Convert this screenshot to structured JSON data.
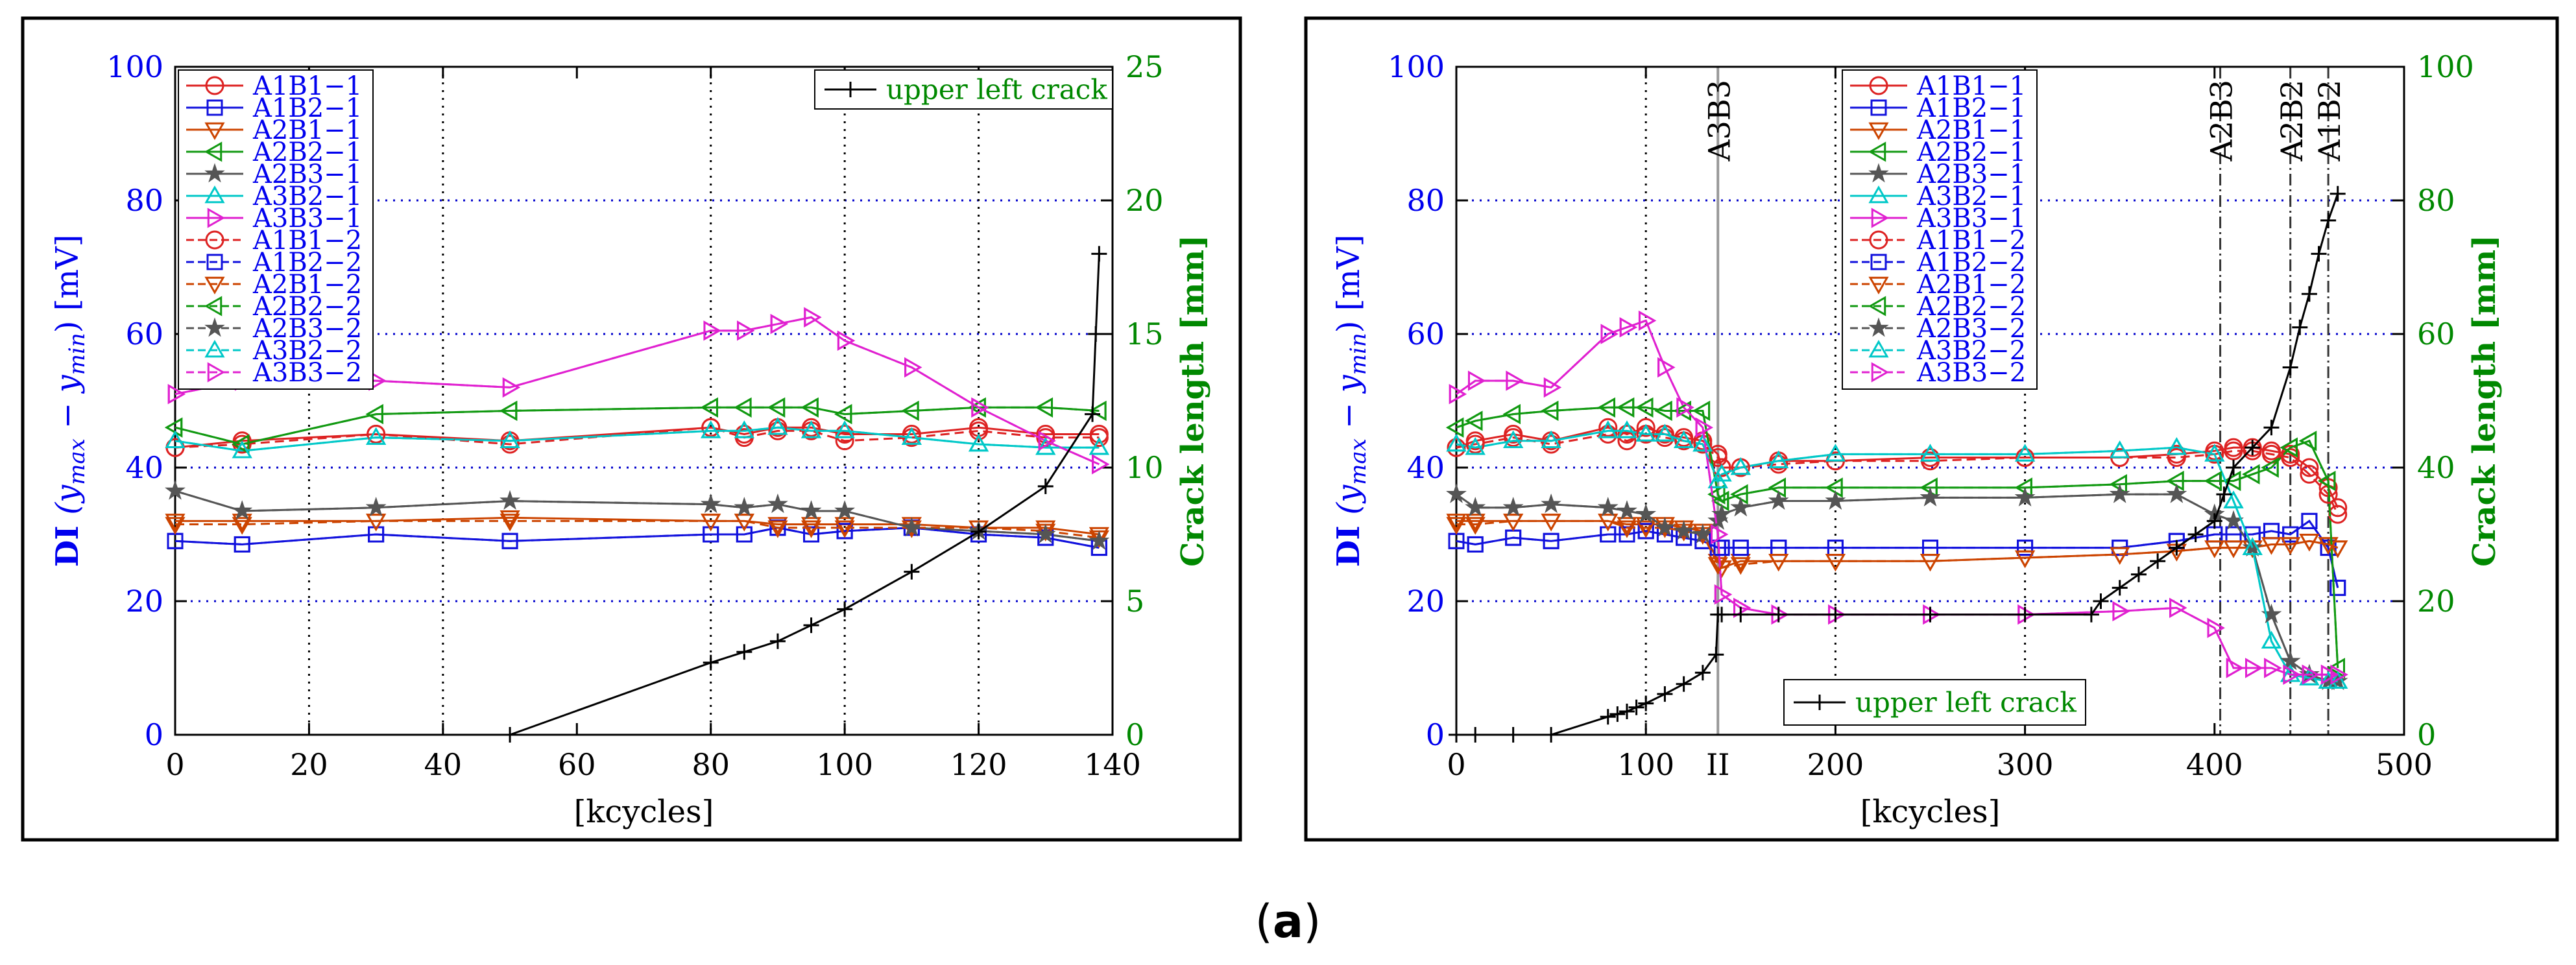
{
  "caption": {
    "open": "(",
    "letter": "a",
    "close": ")"
  },
  "colors": {
    "A1B1": "#dd2222",
    "A1B2": "#1111dd",
    "A2B1": "#cc4400",
    "A2B2": "#119911",
    "A2B3": "#555555",
    "A3B2": "#00c8c8",
    "A3B3": "#e020d0",
    "crack": "#000000",
    "axis_left": "#0000ee",
    "axis_right": "#008800",
    "grid": "#0000cc"
  },
  "chart_data": [
    {
      "type": "line",
      "title": "",
      "xlabel": "[kcycles]",
      "ylabel_left": {
        "bold": "DI",
        "formula": "(y",
        "sub1": "max",
        "minus": " − y",
        "sub2": "min",
        "tail": ") [mV]"
      },
      "ylabel_right": "Crack length [mm]",
      "xlim": [
        0,
        140
      ],
      "ylim_left": [
        0,
        100
      ],
      "ylim_right": [
        0,
        25
      ],
      "x_ticks": [
        "0",
        "20",
        "40",
        "60",
        "80",
        "100",
        "120",
        "140"
      ],
      "y_ticks_left": [
        "0",
        "20",
        "40",
        "60",
        "80",
        "100"
      ],
      "y_ticks_right": [
        "0",
        "5",
        "10",
        "15",
        "20",
        "25"
      ],
      "vlines": [
        20,
        40,
        80,
        100,
        120
      ],
      "legend": [
        "A1B1−1",
        "A1B2−1",
        "A2B1−1",
        "A2B2−1",
        "A2B3−1",
        "A3B2−1",
        "A3B3−1",
        "A1B1−2",
        "A1B2−2",
        "A2B1−2",
        "A2B2−2",
        "A2B3−2",
        "A3B2−2",
        "A3B3−2"
      ],
      "crack_legend": "upper left crack",
      "x": [
        0,
        10,
        30,
        50,
        80,
        85,
        90,
        95,
        100,
        110,
        120,
        130,
        138
      ],
      "series": [
        {
          "name": "A1B1−1",
          "group": "A1B1",
          "marker": "circle",
          "dash": false,
          "values": [
            43,
            44,
            45,
            44,
            46,
            45,
            46,
            46,
            45,
            45,
            46,
            45,
            45
          ]
        },
        {
          "name": "A1B2−1",
          "group": "A1B2",
          "marker": "square",
          "dash": false,
          "values": [
            29,
            28.5,
            30,
            29,
            30,
            30,
            31,
            30,
            30.5,
            31,
            30,
            29.5,
            28
          ]
        },
        {
          "name": "A2B1−1",
          "group": "A2B1",
          "marker": "tri-down",
          "dash": false,
          "values": [
            32,
            32,
            32,
            32.5,
            32,
            32,
            31.5,
            31.5,
            31.5,
            31.5,
            31,
            31,
            30
          ]
        },
        {
          "name": "A2B2−1",
          "group": "A2B2",
          "marker": "tri-left",
          "dash": false,
          "values": [
            46,
            43.5,
            48,
            48.5,
            49,
            49,
            49,
            49,
            48,
            48.5,
            49,
            49,
            48.5
          ]
        },
        {
          "name": "A2B3−1",
          "group": "A2B3",
          "marker": "star",
          "dash": false,
          "values": [
            36.5,
            33.5,
            34,
            35,
            34.5,
            34,
            34.5,
            33.5,
            33.5,
            31,
            30.5,
            30,
            29
          ]
        },
        {
          "name": "A3B2−1",
          "group": "A3B2",
          "marker": "tri-up",
          "dash": false,
          "values": [
            44,
            42.5,
            44.5,
            44,
            45.5,
            45.5,
            46,
            45.5,
            45.5,
            44.5,
            43.5,
            43,
            43
          ]
        },
        {
          "name": "A3B3−1",
          "group": "A3B3",
          "marker": "tri-right",
          "dash": false,
          "values": [
            51,
            53,
            53,
            52,
            60.5,
            60.5,
            61.5,
            62.5,
            59,
            55,
            49,
            44,
            40.5
          ]
        },
        {
          "name": "A1B1−2",
          "group": "A1B1",
          "marker": "circle",
          "dash": true,
          "values": [
            43,
            43.5,
            45,
            43.5,
            46,
            44.5,
            45.5,
            45.5,
            44,
            44.5,
            45.5,
            44.5,
            44.5
          ]
        },
        {
          "name": "A1B2−2",
          "group": "A1B2",
          "marker": "square",
          "dash": true,
          "values": [
            29,
            28.5,
            30,
            29,
            30,
            30,
            31,
            30,
            30.5,
            31,
            30,
            29.5,
            28
          ]
        },
        {
          "name": "A2B1−2",
          "group": "A2B1",
          "marker": "tri-down",
          "dash": true,
          "values": [
            31.5,
            31.5,
            32,
            32,
            32,
            32,
            31,
            31,
            31,
            31,
            31,
            30.5,
            29.5
          ]
        },
        {
          "name": "A2B2−2",
          "group": "A2B2",
          "marker": "tri-left",
          "dash": true,
          "values": [
            46,
            43.5,
            48,
            48.5,
            49,
            49,
            49,
            49,
            48,
            48.5,
            49,
            49,
            48.5
          ]
        },
        {
          "name": "A2B3−2",
          "group": "A2B3",
          "marker": "star",
          "dash": true,
          "values": [
            36.5,
            33.5,
            34,
            35,
            34.5,
            34,
            34.5,
            33.5,
            33.5,
            31,
            30.5,
            30,
            29
          ]
        },
        {
          "name": "A3B2−2",
          "group": "A3B2",
          "marker": "tri-up",
          "dash": true,
          "values": [
            44,
            42.5,
            44.5,
            44,
            45.5,
            45.5,
            46,
            45.5,
            45.5,
            44.5,
            43.5,
            43,
            43
          ]
        },
        {
          "name": "A3B3−2",
          "group": "A3B3",
          "marker": "tri-right",
          "dash": true,
          "values": [
            51,
            53,
            53,
            52,
            60.5,
            60.5,
            61.5,
            62.5,
            59,
            55,
            49,
            44,
            40.5
          ]
        }
      ],
      "crack": {
        "x": [
          50,
          80,
          85,
          90,
          95,
          100,
          110,
          120,
          130,
          137,
          137.5,
          138
        ],
        "values": [
          0,
          2.7,
          3.1,
          3.5,
          4.1,
          4.7,
          6.1,
          7.6,
          9.3,
          12,
          15,
          18
        ]
      }
    },
    {
      "type": "line",
      "title": "",
      "xlabel": "[kcycles]",
      "ylabel_left": {
        "bold": "DI",
        "formula": "(y",
        "sub1": "max",
        "minus": " − y",
        "sub2": "min",
        "tail": ") [mV]"
      },
      "ylabel_right": "Crack length [mm]",
      "xlim": [
        0,
        500
      ],
      "ylim_left": [
        0,
        100
      ],
      "ylim_right": [
        0,
        100
      ],
      "x_ticks": [
        "0",
        "100",
        "200",
        "300",
        "400",
        "500"
      ],
      "x_extra_tick": {
        "x": 138,
        "label": "II"
      },
      "y_ticks_left": [
        "0",
        "20",
        "40",
        "60",
        "80",
        "100"
      ],
      "y_ticks_right": [
        "0",
        "20",
        "40",
        "60",
        "80",
        "100"
      ],
      "vlines_dotted": [
        100,
        200,
        300
      ],
      "events": [
        {
          "x": 138,
          "label": "A3B3",
          "style": "solid"
        },
        {
          "x": 403,
          "label": "A2B3",
          "style": "dashdot"
        },
        {
          "x": 440,
          "label": "A2B2",
          "style": "dashdot"
        },
        {
          "x": 460,
          "label": "A1B2",
          "style": "dashdot"
        }
      ],
      "legend": [
        "A1B1−1",
        "A1B2−1",
        "A2B1−1",
        "A2B2−1",
        "A2B3−1",
        "A3B2−1",
        "A3B3−1",
        "A1B1−2",
        "A1B2−2",
        "A2B1−2",
        "A2B2−2",
        "A2B3−2",
        "A3B2−2",
        "A3B3−2"
      ],
      "crack_legend": "upper left crack",
      "x": [
        0,
        10,
        30,
        50,
        80,
        90,
        100,
        110,
        120,
        130,
        138,
        140,
        150,
        170,
        200,
        250,
        300,
        350,
        380,
        400,
        410,
        420,
        430,
        440,
        450,
        460,
        465
      ],
      "series": [
        {
          "name": "A1B1−1",
          "group": "A1B1",
          "marker": "circle",
          "dash": false,
          "values": [
            43,
            44,
            45,
            44,
            46,
            45,
            46,
            45,
            44.5,
            44,
            42,
            40,
            40,
            41,
            41,
            41.5,
            41.5,
            41.5,
            42,
            42.5,
            43,
            43,
            42.5,
            42,
            40,
            37,
            34
          ]
        },
        {
          "name": "A1B2−1",
          "group": "A1B2",
          "marker": "square",
          "dash": false,
          "values": [
            29,
            28.5,
            29.5,
            29,
            30,
            30,
            30.5,
            30,
            29.5,
            29,
            28,
            28,
            28,
            28,
            28,
            28,
            28,
            28,
            29,
            30,
            30,
            30,
            30.5,
            30,
            32,
            28,
            22
          ]
        },
        {
          "name": "A2B1−1",
          "group": "A2B1",
          "marker": "tri-down",
          "dash": false,
          "values": [
            32,
            32,
            32,
            32,
            32,
            31.5,
            31.5,
            31.5,
            31,
            30.5,
            26,
            25,
            26,
            26,
            26,
            26,
            26.5,
            27,
            27.5,
            28,
            28,
            28,
            28.5,
            28.5,
            29,
            28.5,
            28
          ]
        },
        {
          "name": "A2B2−1",
          "group": "A2B2",
          "marker": "tri-left",
          "dash": false,
          "values": [
            46,
            47,
            48,
            48.5,
            49,
            49,
            49,
            48.5,
            48.5,
            48.5,
            36,
            35,
            36,
            37,
            37,
            37,
            37,
            37.5,
            38,
            38,
            38,
            39,
            40,
            43,
            44,
            38,
            10
          ]
        },
        {
          "name": "A2B3−1",
          "group": "A2B3",
          "marker": "star",
          "dash": false,
          "values": [
            36,
            34,
            34,
            34.5,
            34,
            33.5,
            33,
            31,
            30.5,
            30,
            32,
            33,
            34,
            35,
            35,
            35.5,
            35.5,
            36,
            36,
            33,
            32,
            28,
            18,
            11,
            9,
            8,
            8
          ]
        },
        {
          "name": "A3B2−1",
          "group": "A3B2",
          "marker": "tri-up",
          "dash": false,
          "values": [
            43.5,
            43,
            44,
            44,
            45.5,
            45.5,
            45,
            45,
            44,
            43.5,
            38,
            39,
            40,
            41,
            42,
            42,
            42,
            42.5,
            43,
            42,
            35,
            28,
            14,
            9,
            8.5,
            8,
            8
          ]
        },
        {
          "name": "A3B3−1",
          "group": "A3B3",
          "marker": "tri-right",
          "dash": false,
          "values": [
            51,
            53,
            53,
            52,
            60,
            61,
            62,
            55,
            49,
            46,
            30,
            21,
            19,
            18,
            18,
            18,
            18,
            18.5,
            19,
            16,
            10,
            10,
            10,
            9,
            9,
            9,
            9
          ]
        },
        {
          "name": "A1B1−2",
          "group": "A1B1",
          "marker": "circle",
          "dash": true,
          "values": [
            43,
            43.5,
            44.5,
            43.5,
            45,
            44,
            45,
            44.5,
            44,
            43.5,
            41.5,
            40,
            40,
            40.5,
            41,
            41,
            41.5,
            41.5,
            41.5,
            42,
            42.5,
            42.5,
            42,
            41.5,
            39,
            36,
            33
          ]
        },
        {
          "name": "A1B2−2",
          "group": "A1B2",
          "marker": "square",
          "dash": true,
          "values": [
            29,
            28.5,
            29.5,
            29,
            30,
            30,
            30.5,
            30,
            29.5,
            29,
            28,
            28,
            28,
            28,
            28,
            28,
            28,
            28,
            29,
            30,
            30,
            30,
            30.5,
            30,
            32,
            28,
            22
          ]
        },
        {
          "name": "A2B1−2",
          "group": "A2B1",
          "marker": "tri-down",
          "dash": true,
          "values": [
            31.5,
            31.5,
            32,
            32,
            32,
            31,
            31,
            31,
            30.5,
            30,
            25.5,
            25,
            25.5,
            26,
            26,
            26,
            26.5,
            27,
            27.5,
            28,
            28,
            28,
            28.5,
            28.5,
            29,
            28.5,
            28
          ]
        },
        {
          "name": "A2B2−2",
          "group": "A2B2",
          "marker": "tri-left",
          "dash": true,
          "values": [
            46,
            47,
            48,
            48.5,
            49,
            49,
            49,
            48.5,
            48.5,
            48.5,
            36,
            35,
            36,
            37,
            37,
            37,
            37,
            37.5,
            38,
            38,
            38,
            39,
            40,
            43,
            44,
            38,
            10
          ]
        },
        {
          "name": "A2B3−2",
          "group": "A2B3",
          "marker": "star",
          "dash": true,
          "values": [
            36,
            34,
            34,
            34.5,
            34,
            33.5,
            33,
            31,
            30.5,
            30,
            32,
            33,
            34,
            35,
            35,
            35.5,
            35.5,
            36,
            36,
            33,
            32,
            28,
            18,
            11,
            9,
            8,
            8
          ]
        },
        {
          "name": "A3B2−2",
          "group": "A3B2",
          "marker": "tri-up",
          "dash": true,
          "values": [
            43.5,
            43,
            44,
            44,
            45.5,
            45.5,
            45,
            45,
            44,
            43.5,
            38,
            39,
            40,
            41,
            42,
            42,
            42,
            42.5,
            43,
            42,
            35,
            28,
            14,
            9,
            8.5,
            8,
            8
          ]
        },
        {
          "name": "A3B3−2",
          "group": "A3B3",
          "marker": "tri-right",
          "dash": true,
          "values": [
            51,
            53,
            53,
            52,
            60,
            61,
            62,
            55,
            49,
            46,
            30,
            21,
            19,
            18,
            18,
            18,
            18,
            18.5,
            19,
            16,
            10,
            10,
            10,
            9,
            9,
            9,
            9
          ]
        }
      ],
      "crack": {
        "x": [
          0,
          10,
          30,
          50,
          80,
          85,
          90,
          95,
          100,
          110,
          120,
          130,
          137,
          138,
          140,
          150,
          170,
          200,
          250,
          300,
          335,
          340,
          350,
          360,
          370,
          380,
          390,
          400,
          405,
          410,
          420,
          430,
          440,
          445,
          450,
          455,
          460,
          465
        ],
        "values": [
          0,
          0,
          0,
          0,
          2.7,
          3.1,
          3.5,
          4.1,
          4.7,
          6.1,
          7.6,
          9.3,
          12,
          18,
          18,
          18,
          18,
          18,
          18,
          18,
          18,
          20,
          22,
          24,
          26,
          28,
          30,
          32,
          36,
          40,
          43,
          46,
          55,
          61,
          66,
          72,
          77,
          81
        ]
      }
    }
  ]
}
